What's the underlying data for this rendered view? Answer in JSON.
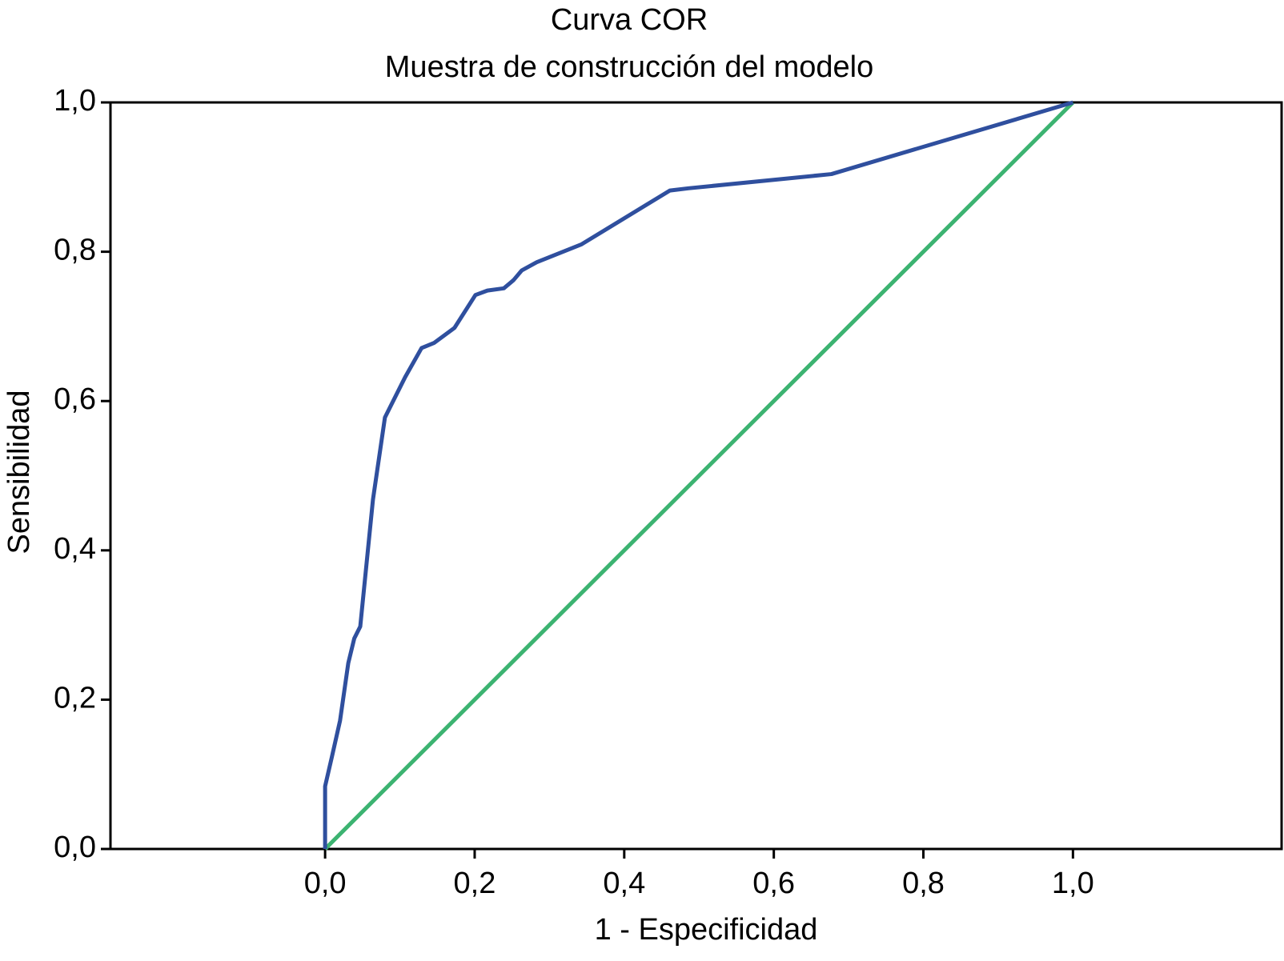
{
  "chart_data": {
    "type": "line",
    "title": "Curva COR",
    "subtitle": "Muestra de construcción del modelo",
    "x_label": "1 - Especificidad",
    "y_label": "Sensibilidad",
    "xlim": [
      -0.287,
      1.279
    ],
    "ylim": [
      0,
      1
    ],
    "xticks": [
      {
        "value": 0,
        "label": "0,0"
      },
      {
        "value": 0.2,
        "label": "0,2"
      },
      {
        "value": 0.4,
        "label": "0,4"
      },
      {
        "value": 0.6,
        "label": "0,6"
      },
      {
        "value": 0.8,
        "label": "0,8"
      },
      {
        "value": 1,
        "label": "1,0"
      }
    ],
    "yticks": [
      {
        "value": 0,
        "label": "0,0"
      },
      {
        "value": 0.2,
        "label": "0,2"
      },
      {
        "value": 0.4,
        "label": "0,4"
      },
      {
        "value": 0.6,
        "label": "0,6"
      },
      {
        "value": 0.8,
        "label": "0,8"
      },
      {
        "value": 1,
        "label": "1,0"
      }
    ],
    "grid": false,
    "series": [
      {
        "color": "#2f4f9e",
        "x": [
          0,
          0,
          0.009,
          0.02,
          0.031,
          0.039,
          0.047,
          0.064,
          0.08,
          0.107,
          0.129,
          0.146,
          0.173,
          0.201,
          0.217,
          0.239,
          0.252,
          0.263,
          0.283,
          0.343,
          0.461,
          0.486,
          0.677,
          1
        ],
        "values": [
          0,
          0.084,
          0.123,
          0.172,
          0.249,
          0.282,
          0.298,
          0.468,
          0.578,
          0.632,
          0.671,
          0.678,
          0.698,
          0.742,
          0.748,
          0.751,
          0.762,
          0.775,
          0.786,
          0.81,
          0.882,
          0.885,
          0.904,
          1
        ]
      },
      {
        "color": "#3cb371",
        "x": [
          0,
          1
        ],
        "values": [
          0,
          1
        ]
      }
    ]
  }
}
